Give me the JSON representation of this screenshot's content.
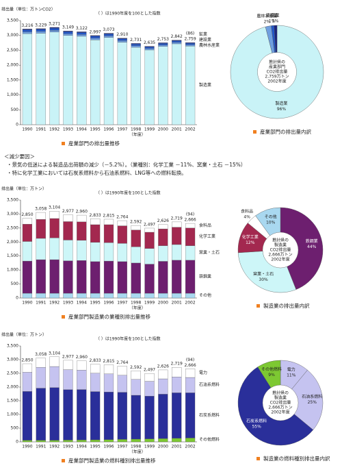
{
  "chart_data": [
    {
      "type": "bar",
      "y_label": "排出量（単位：万トンCO2）",
      "note": "（ ）は1990年度を100とした指数",
      "x_label": "（年度）",
      "caption": "産業部門の排出量推移",
      "index_label": "(86)",
      "categories": [
        "1990",
        "1991",
        "1992",
        "1993",
        "1994",
        "1995",
        "1996",
        "1997",
        "1998",
        "1999",
        "2000",
        "2001",
        "2002"
      ],
      "total_labels": [
        "3,216",
        "3,229",
        "3,271",
        "3,149",
        "3,122",
        "2,997",
        "3,073",
        "2,910",
        "2,731",
        "2,635",
        "2,753",
        "2,842",
        "2,759"
      ],
      "series": [
        {
          "name": "製造業",
          "color": "#c9f3f7",
          "values": [
            3061,
            3074,
            3114,
            2997,
            2972,
            2852,
            2928,
            2772,
            2602,
            2511,
            2629,
            2718,
            2639
          ]
        },
        {
          "name": "農林水産業",
          "color": "#6f9fe0",
          "values": [
            60,
            60,
            60,
            58,
            58,
            56,
            56,
            54,
            50,
            48,
            48,
            48,
            46
          ]
        },
        {
          "name": "建設業",
          "color": "#2257c8",
          "values": [
            70,
            70,
            72,
            70,
            68,
            66,
            66,
            62,
            58,
            56,
            56,
            56,
            54
          ]
        },
        {
          "name": "鉱業",
          "color": "#1a237e",
          "values": [
            25,
            25,
            25,
            24,
            24,
            23,
            23,
            22,
            21,
            20,
            20,
            20,
            20
          ]
        }
      ],
      "ylim": [
        0,
        3500
      ],
      "yticks": [
        0,
        500,
        {
          "value": 1000,
          "label": "1,000"
        },
        {
          "value": 1500,
          "label": "1,500"
        },
        {
          "value": 2000,
          "label": "2,000"
        },
        {
          "value": 2500,
          "label": "2,500"
        },
        {
          "value": 3000,
          "label": "3,000"
        },
        {
          "value": 3500,
          "label": "3,500"
        }
      ]
    },
    {
      "type": "pie",
      "caption": "産業部門の排出量内訳",
      "center_text": [
        "推計県の",
        "産業部門",
        "CO2排出量",
        "2,759万トン",
        "2002年度"
      ],
      "categories": [
        "製造業",
        "農林水産業",
        "建設業",
        "鉱業"
      ],
      "values": [
        96,
        2,
        1,
        1
      ],
      "value_labels": [
        "96%",
        "2%",
        "1%",
        "1%"
      ],
      "colors": [
        "#c9f3f7",
        "#6f9fe0",
        "#2257c8",
        "#1a237e"
      ]
    },
    {
      "type": "bar",
      "y_label": "排出量（単位：万トン）",
      "note": "（ ）は1990年度を100とした指数",
      "x_label": "（年度）",
      "caption": "産業部門製造業の業種別排出量推移",
      "index_label": "(94)",
      "categories": [
        "1990",
        "1991",
        "1992",
        "1993",
        "1994",
        "1995",
        "1996",
        "1997",
        "1998",
        "1999",
        "2000",
        "2001",
        "2002"
      ],
      "total_labels": [
        "2,850",
        "3,058",
        "3,104",
        "2,977",
        "2,960",
        "2,833",
        "2,815",
        "2,764",
        "2,592",
        "2,497",
        "2,626",
        "2,719",
        "2,666"
      ],
      "series": [
        {
          "name": "その他",
          "color": "#a9d8f0",
          "values": [
            170,
            170,
            170,
            170,
            170,
            170,
            170,
            170,
            170,
            170,
            170,
            170,
            170
          ]
        },
        {
          "name": "鉄鋼業",
          "color": "#6d1f6f",
          "values": [
            1150,
            1200,
            1200,
            1160,
            1170,
            1130,
            1150,
            1130,
            1080,
            1040,
            1140,
            1180,
            1180
          ]
        },
        {
          "name": "窯業・土石",
          "color": "#cdf6f8",
          "values": [
            700,
            760,
            780,
            740,
            720,
            690,
            660,
            650,
            580,
            560,
            560,
            560,
            520
          ]
        },
        {
          "name": "化学工業",
          "color": "#a3284f",
          "values": [
            620,
            680,
            690,
            660,
            660,
            630,
            640,
            630,
            600,
            580,
            600,
            620,
            630
          ]
        },
        {
          "name": "食料品",
          "color": "#ffffff",
          "values": [
            210,
            248,
            264,
            247,
            240,
            213,
            195,
            184,
            162,
            147,
            156,
            189,
            166
          ]
        }
      ],
      "ylim": [
        0,
        3500
      ],
      "yticks": [
        0,
        500,
        {
          "value": 1000,
          "label": "1,000"
        },
        {
          "value": 1500,
          "label": "1,500"
        },
        {
          "value": 2000,
          "label": "2,000"
        },
        {
          "value": 2500,
          "label": "2,500"
        },
        {
          "value": 3000,
          "label": "3,000"
        },
        {
          "value": 3500,
          "label": "3,500"
        }
      ]
    },
    {
      "type": "pie",
      "caption": "製造業の排出量内訳",
      "center_text": [
        "推計県の",
        "製造業",
        "CO2排出量",
        "2,666万トン",
        "2002年度"
      ],
      "categories": [
        "鉄鋼業",
        "窯業・土石",
        "化学工業",
        "食料品",
        "その他"
      ],
      "values": [
        44,
        30,
        12,
        4,
        10
      ],
      "value_labels": [
        "44%",
        "30%",
        "12%",
        "4%",
        "10%"
      ],
      "colors": [
        "#6d1f6f",
        "#cdf6f8",
        "#a3284f",
        "#ffffff",
        "#a9d8f0"
      ]
    },
    {
      "type": "bar",
      "y_label": "排出量（単位：万トン）",
      "note": "（ ）は1990年度を100とした指数",
      "x_label": "（年度）",
      "caption": "産業部門製造業の燃料種別排出量推移",
      "index_label": "(94)",
      "categories": [
        "1990",
        "1991",
        "1992",
        "1993",
        "1994",
        "1995",
        "1996",
        "1997",
        "1998",
        "1999",
        "2000",
        "2001",
        "2002"
      ],
      "total_labels": [
        "2,850",
        "3,058",
        "3,104",
        "2,977",
        "2,960",
        "2,833",
        "2,815",
        "2,764",
        "2,592",
        "2,497",
        "2,626",
        "2,719",
        "2,666"
      ],
      "series": [
        {
          "name": "その他燃料",
          "color": "#7dc832",
          "values": [
            60,
            60,
            60,
            65,
            70,
            75,
            80,
            90,
            100,
            110,
            120,
            130,
            140
          ]
        },
        {
          "name": "石炭系燃料",
          "color": "#2a2f9a",
          "values": [
            1780,
            1900,
            1920,
            1840,
            1840,
            1760,
            1740,
            1720,
            1600,
            1560,
            1620,
            1660,
            1650
          ]
        },
        {
          "name": "石油系燃料",
          "color": "#c5c3f0",
          "values": [
            700,
            760,
            770,
            730,
            710,
            670,
            660,
            620,
            580,
            540,
            560,
            580,
            560
          ]
        },
        {
          "name": "電力",
          "color": "#ffffff",
          "values": [
            310,
            338,
            354,
            342,
            340,
            328,
            335,
            334,
            312,
            287,
            326,
            349,
            316
          ]
        }
      ],
      "ylim": [
        0,
        3500
      ],
      "yticks": [
        0,
        500,
        {
          "value": 1000,
          "label": "1,000"
        },
        {
          "value": 1500,
          "label": "1,500"
        },
        {
          "value": 2000,
          "label": "2,000"
        },
        {
          "value": 2500,
          "label": "2,500"
        },
        {
          "value": 3000,
          "label": "3,000"
        },
        {
          "value": 3500,
          "label": "3,500"
        }
      ]
    },
    {
      "type": "pie",
      "caption": "製造業の燃料種別排出量内訳",
      "center_text": [
        "推計県の",
        "製造業",
        "CO2排出量",
        "2,666万トン",
        "2002年度"
      ],
      "categories": [
        "電力",
        "石油系燃料",
        "石炭系燃料",
        "その他燃料"
      ],
      "values": [
        11,
        25,
        55,
        9
      ],
      "value_labels": [
        "11%",
        "25%",
        "55%",
        "9%"
      ],
      "colors": [
        "#c5c3f0",
        "#c5c3f0",
        "#2a2f9a",
        "#7dc832"
      ]
    }
  ],
  "text": {
    "heading": "＜減少要因＞",
    "items": [
      "・景気の低迷による製造品出荷額の減少（－5.2%）。（業種別：化学工業 －11%、窯業・土石 －15%）",
      "・特に化学工業においては石炭系燃料から石油系燃料、LNG等への燃料転換。"
    ]
  }
}
